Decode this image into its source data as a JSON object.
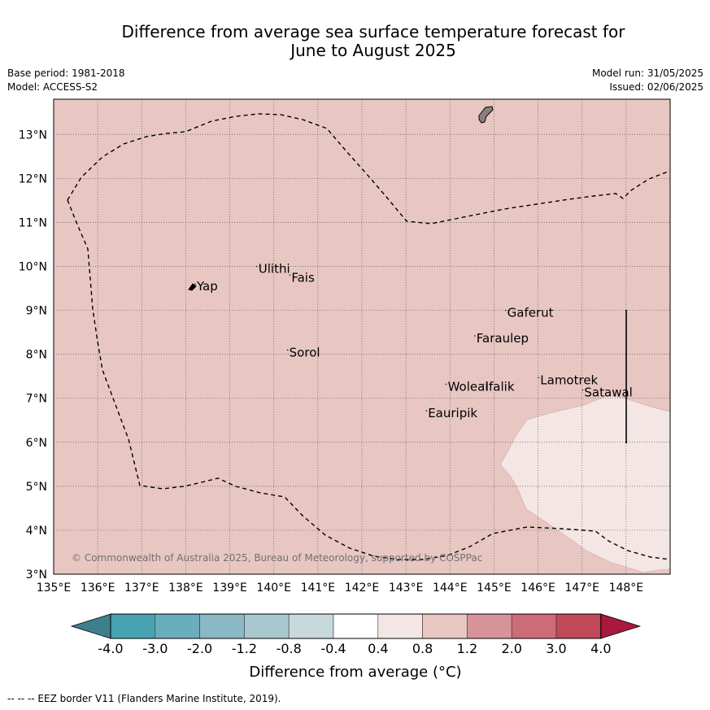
{
  "title_line1": "Difference from average sea surface temperature forecast for",
  "title_line2": "June to August 2025",
  "base_period": "Base period: 1981-2018",
  "model": "Model: ACCESS-S2",
  "model_run": "Model run: 31/05/2025",
  "issued": "Issued: 02/06/2025",
  "map": {
    "lon_range": [
      135,
      149
    ],
    "lat_range": [
      3,
      13.8
    ],
    "lon_ticks": [
      "135°E",
      "136°E",
      "137°E",
      "138°E",
      "139°E",
      "140°E",
      "141°E",
      "142°E",
      "143°E",
      "144°E",
      "145°E",
      "146°E",
      "147°E",
      "148°E"
    ],
    "lat_ticks": [
      "3°N",
      "4°N",
      "5°N",
      "6°N",
      "7°N",
      "8°N",
      "9°N",
      "10°N",
      "11°N",
      "12°N",
      "13°N"
    ],
    "background_color": "#e8c7c2",
    "warm_region_color": "#f4e6e4",
    "places": [
      {
        "name": "Yap",
        "lon": 138.25,
        "lat": 9.45
      },
      {
        "name": "Ulithi",
        "lon": 139.65,
        "lat": 9.85
      },
      {
        "name": "Fais",
        "lon": 140.4,
        "lat": 9.65
      },
      {
        "name": "Sorol",
        "lon": 140.35,
        "lat": 7.95
      },
      {
        "name": "Gaferut",
        "lon": 145.3,
        "lat": 8.85
      },
      {
        "name": "Faraulep",
        "lon": 144.6,
        "lat": 8.27
      },
      {
        "name": "Lamotrek",
        "lon": 146.05,
        "lat": 7.32
      },
      {
        "name": "Satawal",
        "lon": 147.05,
        "lat": 7.04
      },
      {
        "name": "Woleai",
        "lon": 143.95,
        "lat": 7.17
      },
      {
        "name": "Ifalik",
        "lon": 144.8,
        "lat": 7.17
      },
      {
        "name": "Eauripik",
        "lon": 143.5,
        "lat": 6.57
      }
    ],
    "copyright": "© Commonwealth of Australia 2025, Bureau of Meteorology, supported by COSPPac"
  },
  "colorbar": {
    "labels": [
      "-4.0",
      "-3.0",
      "-2.0",
      "-1.2",
      "-0.8",
      "-0.4",
      "0.4",
      "0.8",
      "1.2",
      "2.0",
      "3.0",
      "4.0"
    ],
    "colors": [
      "#3e7f8c",
      "#47a2b2",
      "#6aadbd",
      "#8ab8c4",
      "#a8c8cf",
      "#c8d9dd",
      "#ffffff",
      "#f4e6e4",
      "#e8c7c2",
      "#d8939a",
      "#cd6b76",
      "#c14858",
      "#a8193c"
    ],
    "title": "Difference from average (°C)"
  },
  "footer": "--  --  -- EEZ border V11 (Flanders Marine Institute, 2019)."
}
